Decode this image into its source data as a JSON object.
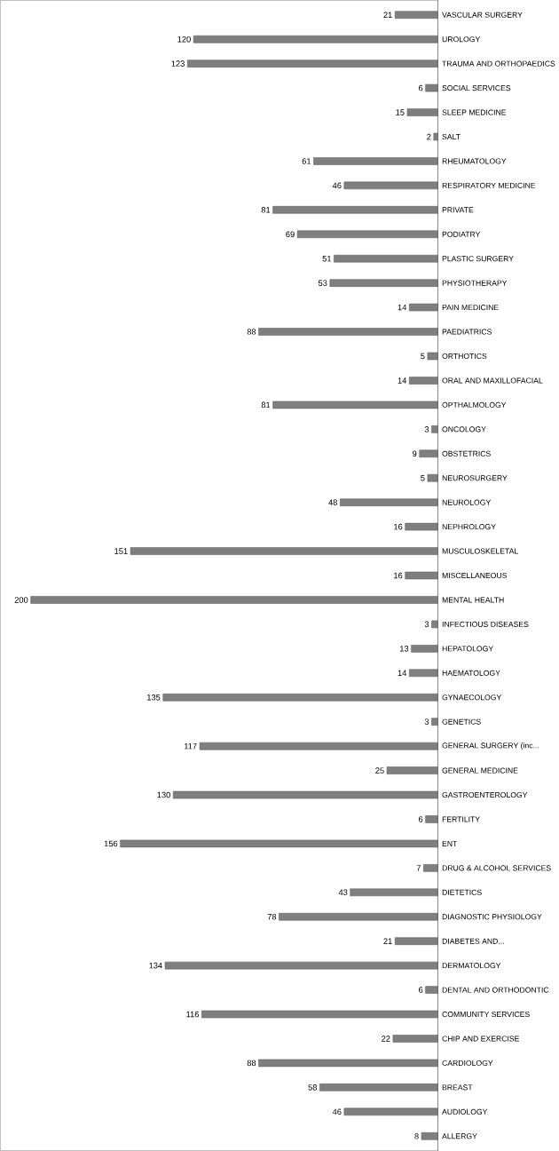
{
  "chart_data": {
    "type": "bar",
    "orientation": "horizontal",
    "data_labels": true,
    "tick_labels": "y",
    "color": "#7f7f7f",
    "xlim": [
      215,
      0
    ],
    "categories": [
      "VASCULAR SURGERY",
      "UROLOGY",
      "TRAUMA AND ORTHOPAEDICS",
      "SOCIAL SERVICES",
      "SLEEP MEDICINE",
      "SALT",
      "RHEUMATOLOGY",
      "RESPIRATORY MEDICINE",
      "PRIVATE",
      "PODIATRY",
      "PLASTIC SURGERY",
      "PHYSIOTHERAPY",
      "PAIN MEDICINE",
      "PAEDIATRICS",
      "ORTHOTICS",
      "ORAL AND MAXILLOFACIAL",
      "OPTHALMOLOGY",
      "ONCOLOGY",
      "OBSTETRICS",
      "NEUROSURGERY",
      "NEUROLOGY",
      "NEPHROLOGY",
      "MUSCULOSKELETAL",
      "MISCELLANEOUS",
      "MENTAL HEALTH",
      "INFECTIOUS DISEASES",
      "HEPATOLOGY",
      "HAEMATOLOGY",
      "GYNAECOLOGY",
      "GENETICS",
      "GENERAL SURGERY (inc...",
      "GENERAL MEDICINE",
      "GASTROENTEROLOGY",
      "FERTILITY",
      "ENT",
      "DRUG & ALCOHOL SERVICES",
      "DIETETICS",
      "DIAGNOSTIC PHYSIOLOGY",
      "DIABETES AND...",
      "DERMATOLOGY",
      "DENTAL AND ORTHODONTIC",
      "COMMUNITY SERVICES",
      "CHIP AND EXERCISE",
      "CARDIOLOGY",
      "BREAST",
      "AUDIOLOGY",
      "ALLERGY"
    ],
    "values": [
      21,
      120,
      123,
      6,
      15,
      2,
      61,
      46,
      81,
      69,
      51,
      53,
      14,
      88,
      5,
      14,
      81,
      3,
      9,
      5,
      48,
      16,
      151,
      16,
      200,
      3,
      13,
      14,
      135,
      3,
      117,
      25,
      130,
      6,
      156,
      7,
      43,
      78,
      21,
      134,
      6,
      116,
      22,
      88,
      58,
      46,
      8
    ]
  }
}
